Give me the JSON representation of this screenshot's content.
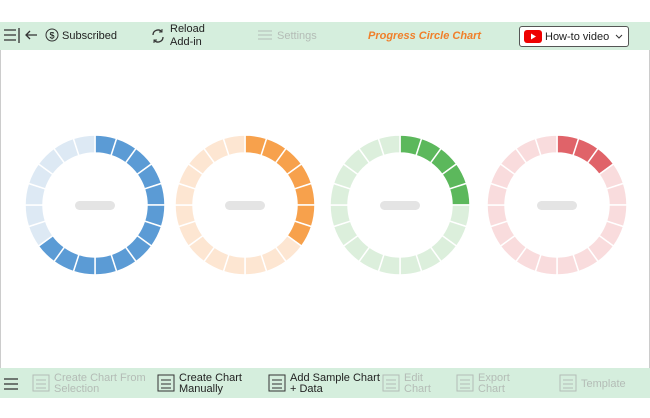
{
  "toolbar": {
    "subscribed": "Subscribed",
    "reload": [
      "Reload",
      "Add-in"
    ],
    "settings": "Settings",
    "title": "Progress Circle Chart",
    "video": "How-to video"
  },
  "rings": [
    {
      "color": "#5b9bd5",
      "track": "#dde9f4",
      "segments": 20,
      "filled": 13
    },
    {
      "color": "#f7a14c",
      "track": "#fde6d2",
      "segments": 20,
      "filled": 7
    },
    {
      "color": "#5cb85c",
      "track": "#dcefdc",
      "segments": 20,
      "filled": 5
    },
    {
      "color": "#e06369",
      "track": "#f9dcdd",
      "segments": 20,
      "filled": 3
    }
  ],
  "footer": {
    "buttons": [
      {
        "label": [
          "Create Chart From",
          "Selection"
        ],
        "enabled": false
      },
      {
        "label": [
          "Create Chart",
          "Manually"
        ],
        "enabled": true
      },
      {
        "label": [
          "Add Sample Chart",
          "+ Data"
        ],
        "enabled": true
      },
      {
        "label": [
          "Edit",
          "Chart"
        ],
        "enabled": false
      },
      {
        "label": [
          "Export",
          "Chart"
        ],
        "enabled": false
      },
      {
        "label": [
          "Template"
        ],
        "enabled": false
      }
    ]
  }
}
